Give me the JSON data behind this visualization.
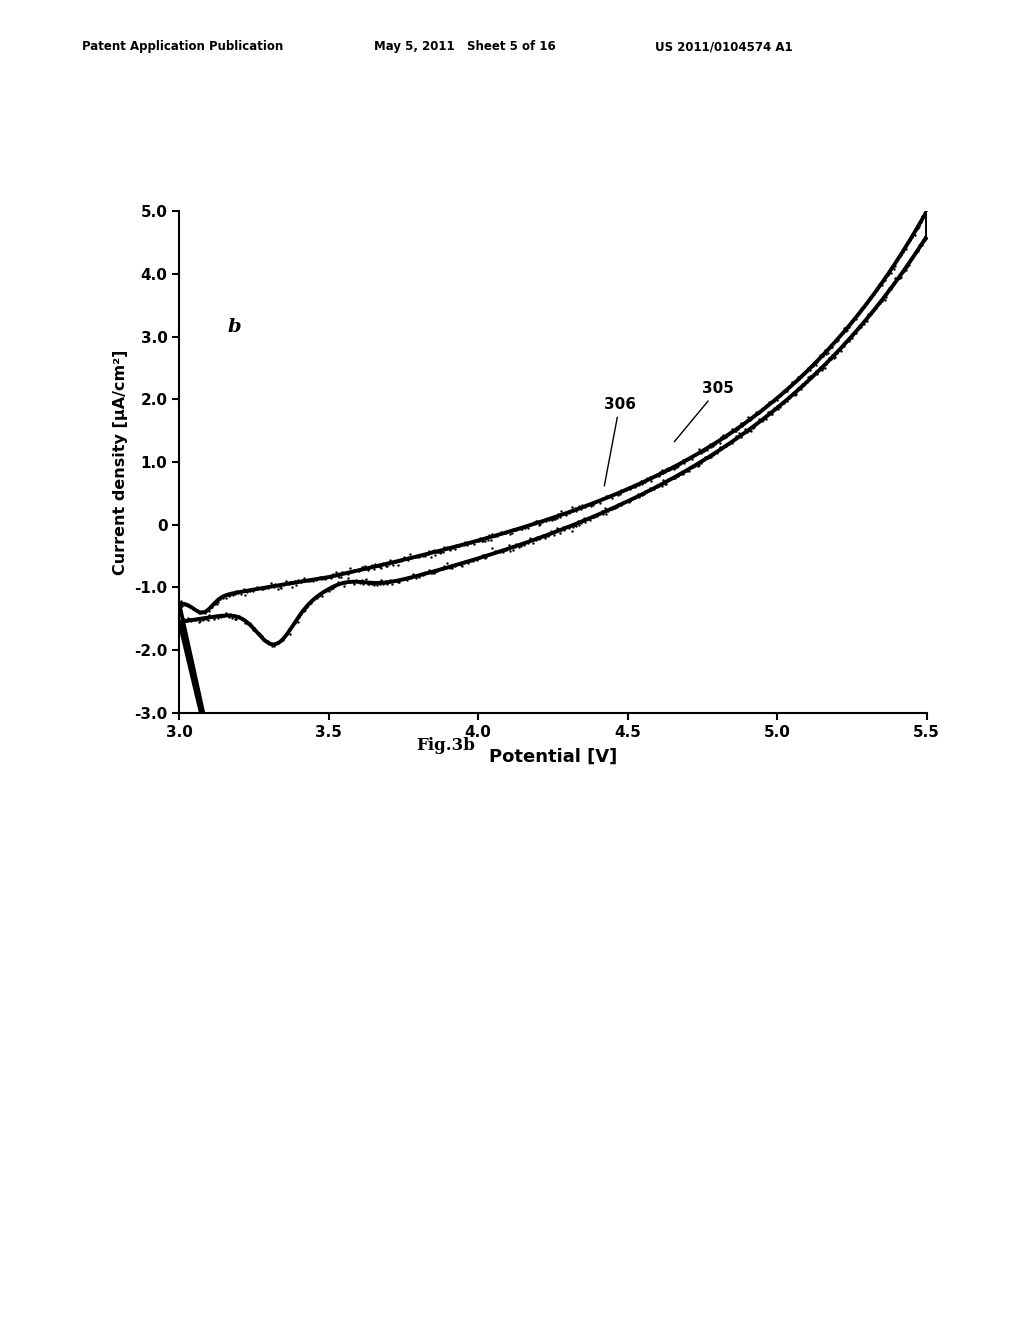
{
  "xlabel": "Potential [V]",
  "ylabel": "Current density [μA/cm²]",
  "xlim": [
    3.0,
    5.5
  ],
  "ylim": [
    -3.0,
    5.0
  ],
  "xticks": [
    3.0,
    3.5,
    4.0,
    4.5,
    5.0,
    5.5
  ],
  "yticks": [
    -3.0,
    -2.0,
    -1.0,
    0,
    1.0,
    2.0,
    3.0,
    4.0,
    5.0
  ],
  "label_b": "b",
  "label_306": "306",
  "label_305": "305",
  "fig_label": "Fig.3b",
  "patent_left": "Patent Application Publication",
  "patent_date": "May 5, 2011   Sheet 5 of 16",
  "patent_num": "US 2011/0104574 A1",
  "line_color": "#000000",
  "background_color": "#ffffff"
}
